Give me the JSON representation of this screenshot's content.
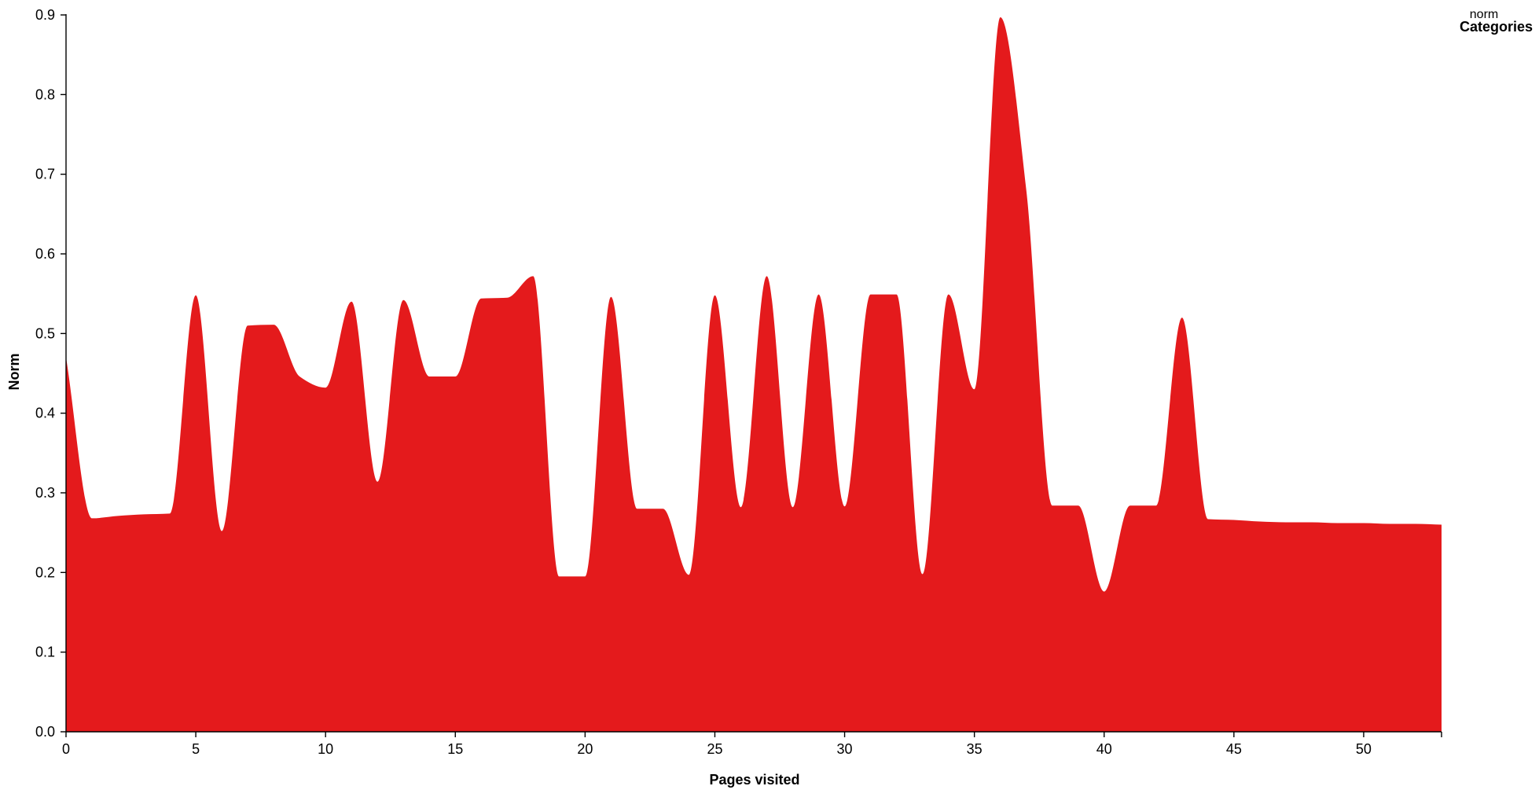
{
  "chart_data": {
    "type": "area",
    "xlabel": "Pages visited",
    "ylabel": "Norm",
    "xlim": [
      0,
      53
    ],
    "ylim": [
      0,
      0.9
    ],
    "x_ticks": [
      0,
      5,
      10,
      15,
      20,
      25,
      30,
      35,
      40,
      45,
      50
    ],
    "y_ticks": [
      0.0,
      0.1,
      0.2,
      0.3,
      0.4,
      0.5,
      0.6,
      0.7,
      0.8,
      0.9
    ],
    "x_tick_labels": [
      "0",
      "5",
      "10",
      "15",
      "20",
      "25",
      "30",
      "35",
      "40",
      "45",
      "50"
    ],
    "y_tick_labels": [
      "0.0",
      "0.1",
      "0.2",
      "0.3",
      "0.4",
      "0.5",
      "0.6",
      "0.7",
      "0.8",
      "0.9"
    ],
    "legend": {
      "title": "Categories",
      "entries": [
        "norm"
      ],
      "placement": "top-right"
    },
    "series": [
      {
        "name": "norm",
        "color": "#e41a1c",
        "x": [
          0,
          1,
          2,
          3,
          4,
          5,
          6,
          7,
          8,
          9,
          10,
          11,
          12,
          13,
          14,
          15,
          16,
          17,
          18,
          19,
          20,
          21,
          22,
          23,
          24,
          25,
          26,
          27,
          28,
          29,
          30,
          31,
          32,
          33,
          34,
          35,
          36,
          37,
          38,
          39,
          40,
          41,
          42,
          43,
          44,
          45,
          46,
          47,
          48,
          49,
          50,
          51,
          52,
          53
        ],
        "values": [
          0.47,
          0.268,
          0.271,
          0.273,
          0.274,
          0.548,
          0.252,
          0.51,
          0.511,
          0.446,
          0.432,
          0.54,
          0.314,
          0.542,
          0.446,
          0.446,
          0.544,
          0.545,
          0.572,
          0.195,
          0.195,
          0.546,
          0.28,
          0.28,
          0.197,
          0.548,
          0.282,
          0.572,
          0.282,
          0.549,
          0.283,
          0.549,
          0.549,
          0.198,
          0.549,
          0.43,
          0.897,
          0.68,
          0.284,
          0.284,
          0.176,
          0.284,
          0.284,
          0.52,
          0.267,
          0.266,
          0.264,
          0.263,
          0.263,
          0.262,
          0.262,
          0.261,
          0.261,
          0.26
        ]
      }
    ]
  }
}
